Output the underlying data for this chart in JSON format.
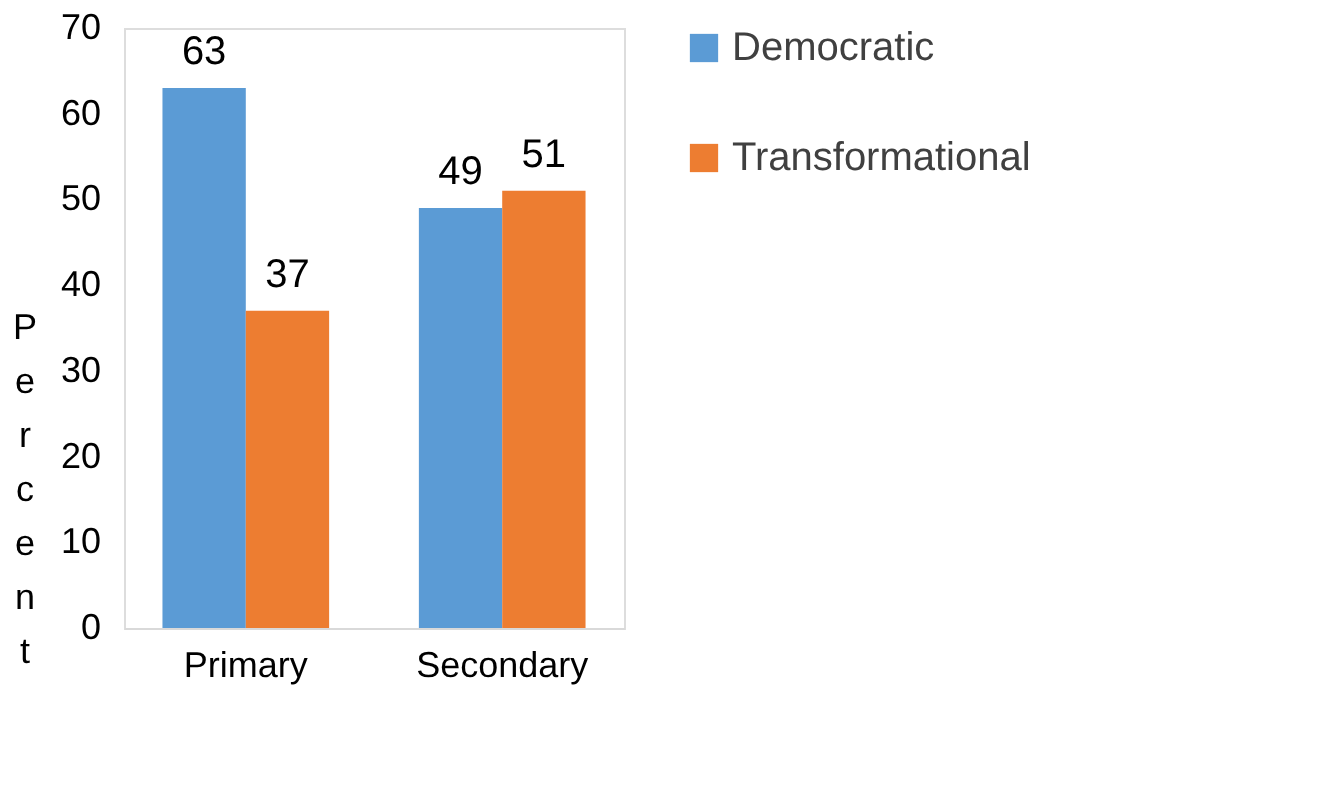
{
  "chart_data": {
    "type": "bar",
    "ylabel": "Percent",
    "categories": [
      "Primary",
      "Secondary"
    ],
    "series": [
      {
        "name": "Democratic",
        "color": "#5b9bd5",
        "values": [
          63,
          49
        ]
      },
      {
        "name": "Transformational",
        "color": "#ed7d31",
        "values": [
          37,
          51
        ]
      }
    ],
    "ylim": [
      0,
      70
    ],
    "yticks": [
      0,
      10,
      20,
      30,
      40,
      50,
      60,
      70
    ],
    "grid": false,
    "legend": "right",
    "data_labels": true
  }
}
